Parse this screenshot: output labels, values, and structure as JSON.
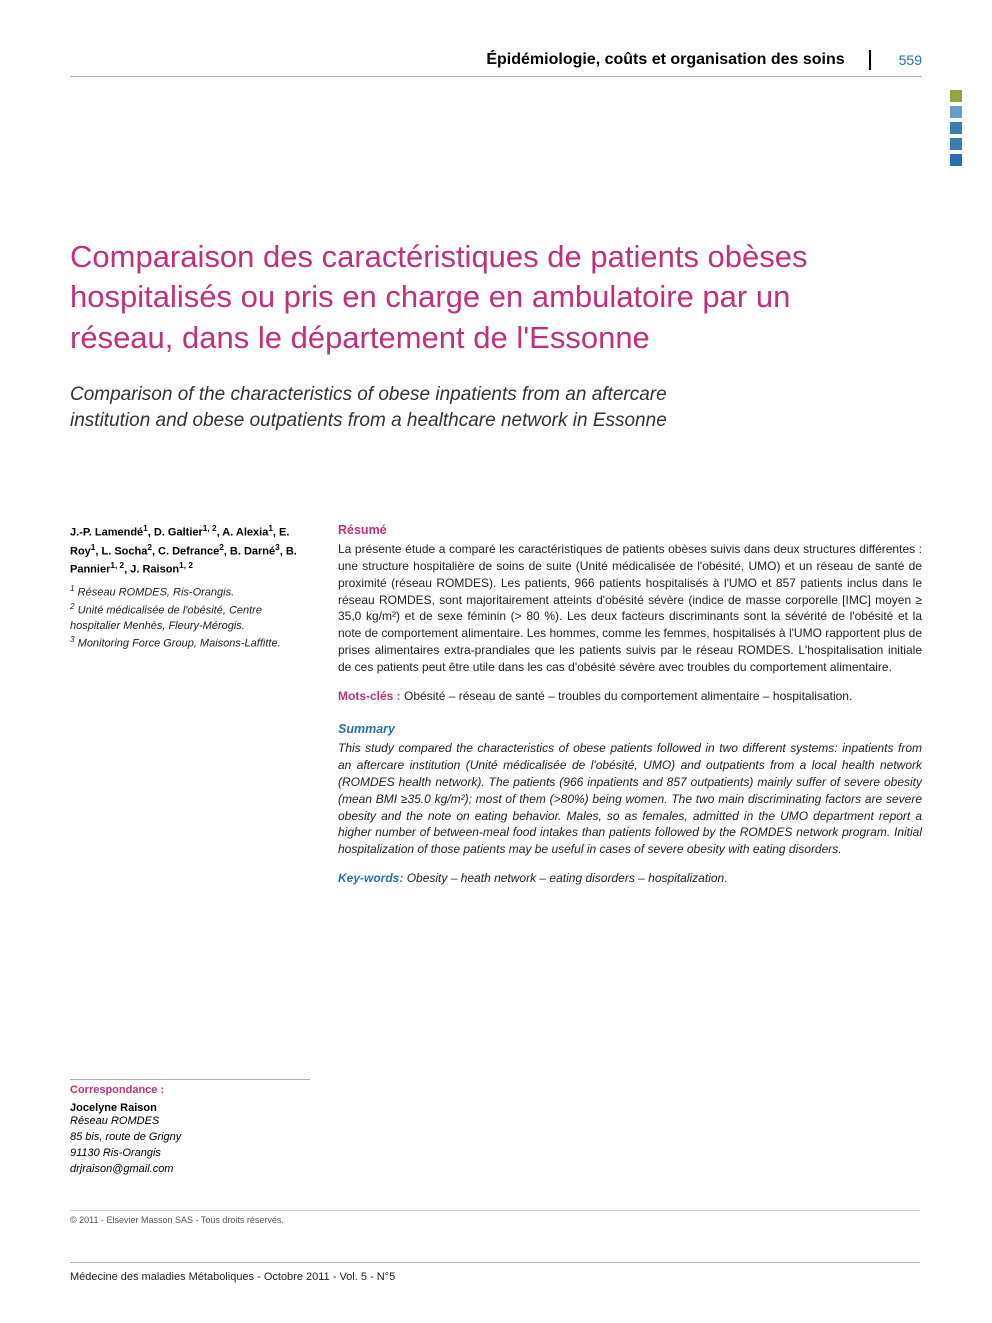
{
  "header": {
    "section": "Épidémiologie, coûts et organisation des soins",
    "page_number": "559"
  },
  "squares": [
    "#8fa83d",
    "#6a9cc7",
    "#3d7db3",
    "#3d7db3",
    "#2a6fb5"
  ],
  "title": "Comparaison des caractéristiques de patients obèses hospitalisés ou pris en charge en ambulatoire par un réseau, dans le département de l'Essonne",
  "subtitle": "Comparison of the characteristics of obese inpatients from an aftercare institution and obese outpatients from a healthcare network in Essonne",
  "authors_html": "J.-P. Lamendé<sup>1</sup>, D. Galtier<sup>1, 2</sup>, A. Alexia<sup>1</sup>, E. Roy<sup>1</sup>, L. Socha<sup>2</sup>, C. Defrance<sup>2</sup>, B. Darné<sup>3</sup>, B. Pannier<sup>1, 2</sup>, J. Raison<sup>1, 2</sup>",
  "affiliations": [
    "1 Réseau ROMDES, Ris-Orangis.",
    "2 Unité médicalisée de l'obésité, Centre hospitalier Menhès, Fleury-Mérogis.",
    "3 Monitoring Force Group, Maisons-Laffitte."
  ],
  "resume": {
    "heading": "Résumé",
    "text": "La présente étude a comparé les caractéristiques de patients obèses suivis dans deux structures différentes : une structure hospitalière de soins de suite (Unité médicalisée de l'obésité, UMO) et un réseau de santé de proximité (réseau ROMDES). Les patients, 966 patients hospitalisés à l'UMO et 857 patients inclus dans le réseau ROMDES, sont majoritairement atteints d'obésité sévère (indice de masse corporelle [IMC] moyen ≥ 35,0 kg/m²) et de sexe féminin (> 80 %). Les deux facteurs discriminants sont la sévérité de l'obésité et la note de comportement alimentaire. Les hommes, comme les femmes, hospitalisés à l'UMO rapportent plus de prises alimentaires extra-prandiales que les patients suivis par le réseau ROMDES. L'hospitalisation initiale de ces patients peut être utile dans les cas d'obésité sévère avec troubles du comportement alimentaire.",
    "keywords_label": "Mots-clés :",
    "keywords": "Obésité – réseau de santé – troubles du comportement alimentaire – hospitalisation."
  },
  "summary": {
    "heading": "Summary",
    "text": "This study compared the characteristics of obese patients followed in two different systems: inpatients from an aftercare institution (Unité médicalisée de l'obésité, UMO) and outpatients from a local health network (ROMDES health network). The patients (966 inpatients and 857 outpatients) mainly suffer of severe obesity (mean BMI ≥35.0 kg/m²); most of them (>80%) being women. The two main discriminating factors are severe obesity and the note on eating behavior. Males, so as females, admitted in the UMO department report a higher number of between-meal food intakes than patients followed by the ROMDES network program. Initial hospitalization of those patients may be useful in cases of severe obesity with eating disorders.",
    "keywords_label": "Key-words:",
    "keywords": "Obesity – heath network – eating disorders – hospitalization."
  },
  "correspondence": {
    "heading": "Correspondance :",
    "name": "Jocelyne Raison",
    "lines": [
      "Réseau ROMDES",
      "85 bis, route de Grigny",
      "91130 Ris-Orangis",
      "drjraison@gmail.com"
    ]
  },
  "copyright": "© 2011 - Elsevier Masson SAS - Tous droits réservés.",
  "footer": "Médecine des maladies Métaboliques - Octobre 2011 - Vol. 5 - N°5",
  "colors": {
    "accent_red": "#c1307f",
    "accent_blue": "#2a6fb5",
    "text": "#222222",
    "rule": "#b0b0b0"
  }
}
